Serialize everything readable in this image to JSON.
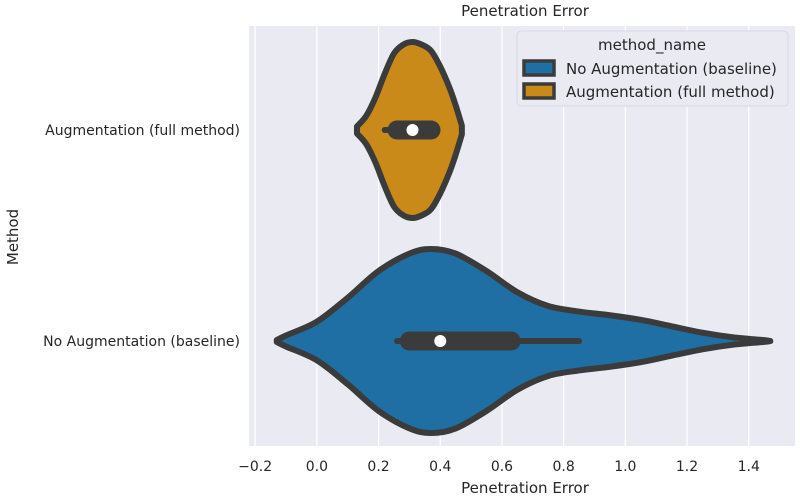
{
  "chart_data": {
    "type": "violin",
    "orientation": "horizontal",
    "title": "Penetration Error",
    "xlabel": "Penetration Error",
    "ylabel": "Method",
    "xlim": [
      -0.22,
      1.55
    ],
    "xticks": [
      -0.2,
      0.0,
      0.2,
      0.4,
      0.6,
      0.8,
      1.0,
      1.2,
      1.4
    ],
    "xtick_labels": [
      "−0.2",
      "0.0",
      "0.2",
      "0.4",
      "0.6",
      "0.8",
      "1.0",
      "1.2",
      "1.4"
    ],
    "categories": [
      "Augmentation (full method)",
      "No Augmentation (baseline)"
    ],
    "grid": true,
    "legend": {
      "title": "method_name",
      "placement": "top-right",
      "entries": [
        "No Augmentation (baseline)",
        "Augmentation (full method)"
      ]
    },
    "series": [
      {
        "name": "Augmentation (full method)",
        "color": "#c98a1a",
        "min": 0.13,
        "max": 0.47,
        "q1": 0.26,
        "median": 0.31,
        "q3": 0.37,
        "whisker_low": 0.22,
        "whisker_high": 0.38,
        "density": [
          [
            0.13,
            0.04
          ],
          [
            0.16,
            0.16
          ],
          [
            0.19,
            0.37
          ],
          [
            0.22,
            0.64
          ],
          [
            0.25,
            0.87
          ],
          [
            0.28,
            0.97
          ],
          [
            0.31,
            1.0
          ],
          [
            0.34,
            0.97
          ],
          [
            0.37,
            0.9
          ],
          [
            0.4,
            0.72
          ],
          [
            0.43,
            0.48
          ],
          [
            0.45,
            0.28
          ],
          [
            0.47,
            0.05
          ]
        ]
      },
      {
        "name": "No Augmentation (baseline)",
        "color": "#1f6fa5",
        "min": -0.13,
        "max": 1.47,
        "q1": 0.3,
        "median": 0.4,
        "q3": 0.63,
        "whisker_low": 0.26,
        "whisker_high": 0.85,
        "density": [
          [
            -0.13,
            0.01
          ],
          [
            -0.1,
            0.06
          ],
          [
            0.0,
            0.21
          ],
          [
            0.1,
            0.47
          ],
          [
            0.2,
            0.76
          ],
          [
            0.3,
            0.95
          ],
          [
            0.37,
            1.0
          ],
          [
            0.45,
            0.95
          ],
          [
            0.55,
            0.76
          ],
          [
            0.65,
            0.53
          ],
          [
            0.75,
            0.38
          ],
          [
            0.85,
            0.32
          ],
          [
            0.95,
            0.28
          ],
          [
            1.05,
            0.23
          ],
          [
            1.15,
            0.16
          ],
          [
            1.25,
            0.09
          ],
          [
            1.35,
            0.04
          ],
          [
            1.45,
            0.01
          ],
          [
            1.47,
            0.0
          ]
        ]
      }
    ]
  }
}
